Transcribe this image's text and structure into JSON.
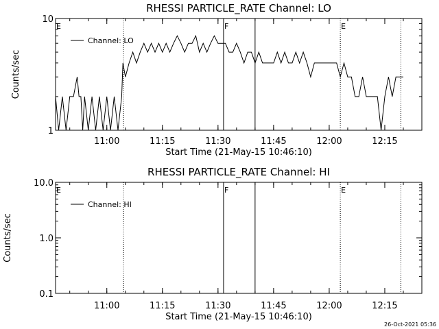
{
  "footer": {
    "timestamp": "26-Oct-2021 05:36"
  },
  "chart_data": [
    {
      "type": "line",
      "title": "RHESSI PARTICLE_RATE Channel: LO",
      "xlabel": "Start Time (21-May-15 10:46:10)",
      "ylabel": "Counts/sec",
      "yscale": "log",
      "xlim": [
        "10:46:10",
        "12:25:00"
      ],
      "ylim": [
        1,
        10
      ],
      "xticks": [
        "11:00",
        "11:15",
        "11:30",
        "11:45",
        "12:00",
        "12:15"
      ],
      "yticks": [
        "1",
        "10"
      ],
      "legend": {
        "label": "Channel: LO",
        "position": "top-left"
      },
      "markers": [
        {
          "time": "10:46:10",
          "label": "E",
          "style": "dotted"
        },
        {
          "time": "11:04:30",
          "label": "",
          "style": "dotted"
        },
        {
          "time": "11:31:30",
          "label": "F",
          "style": "solid"
        },
        {
          "time": "11:40:00",
          "label": "",
          "style": "solid"
        },
        {
          "time": "12:03:00",
          "label": "E",
          "style": "dotted"
        },
        {
          "time": "12:19:20",
          "label": "",
          "style": "dotted"
        }
      ],
      "series": [
        {
          "name": "Channel: LO",
          "x": [
            "10:46:10",
            "10:47:00",
            "10:48:00",
            "10:49:00",
            "10:50:00",
            "10:51:00",
            "10:52:00",
            "10:52:30",
            "10:53:00",
            "10:53:30",
            "10:54:00",
            "10:55:00",
            "10:56:00",
            "10:57:00",
            "10:58:00",
            "10:59:00",
            "11:00:00",
            "11:01:00",
            "11:02:00",
            "11:03:00",
            "11:04:00",
            "11:04:20",
            "11:05:00",
            "11:06:00",
            "11:07:00",
            "11:08:00",
            "11:09:00",
            "11:10:00",
            "11:11:00",
            "11:12:00",
            "11:13:00",
            "11:14:00",
            "11:15:00",
            "11:16:00",
            "11:17:00",
            "11:18:00",
            "11:19:00",
            "11:20:00",
            "11:21:00",
            "11:22:00",
            "11:23:00",
            "11:24:00",
            "11:25:00",
            "11:26:00",
            "11:27:00",
            "11:28:00",
            "11:29:00",
            "11:30:00",
            "11:31:00",
            "11:32:00",
            "11:33:00",
            "11:34:00",
            "11:35:00",
            "11:36:00",
            "11:37:00",
            "11:38:00",
            "11:39:00",
            "11:40:00",
            "11:41:00",
            "11:42:00",
            "11:43:00",
            "11:44:00",
            "11:45:00",
            "11:46:00",
            "11:47:00",
            "11:48:00",
            "11:49:00",
            "11:50:00",
            "11:51:00",
            "11:52:00",
            "11:53:00",
            "11:54:00",
            "11:55:00",
            "11:56:00",
            "11:57:00",
            "11:58:00",
            "11:59:00",
            "12:00:00",
            "12:01:00",
            "12:02:00",
            "12:03:00",
            "12:04:00",
            "12:05:00",
            "12:06:00",
            "12:07:00",
            "12:08:00",
            "12:09:00",
            "12:10:00",
            "12:11:00",
            "12:12:00",
            "12:13:00",
            "12:14:00",
            "12:15:00",
            "12:16:00",
            "12:17:00",
            "12:18:00",
            "12:19:00",
            "12:20:00"
          ],
          "values": [
            2,
            1,
            2,
            1,
            2,
            2,
            3,
            2,
            2,
            1,
            2,
            1,
            2,
            1,
            2,
            1,
            2,
            1,
            2,
            1,
            2,
            4,
            3,
            4,
            5,
            4,
            5,
            6,
            5,
            6,
            5,
            6,
            5,
            6,
            5,
            6,
            7,
            6,
            5,
            6,
            6,
            7,
            5,
            6,
            5,
            6,
            7,
            6,
            6,
            6,
            5,
            5,
            6,
            5,
            4,
            5,
            5,
            4,
            5,
            4,
            4,
            4,
            4,
            5,
            4,
            5,
            4,
            4,
            5,
            4,
            5,
            4,
            3,
            4,
            4,
            4,
            4,
            4,
            4,
            4,
            3,
            4,
            3,
            3,
            2,
            2,
            3,
            2,
            2,
            2,
            2,
            1,
            2,
            3,
            2,
            3,
            3,
            3
          ]
        }
      ]
    },
    {
      "type": "line",
      "title": "RHESSI PARTICLE_RATE Channel: HI",
      "xlabel": "Start Time (21-May-15 10:46:10)",
      "ylabel": "Counts/sec",
      "yscale": "log",
      "xlim": [
        "10:46:10",
        "12:25:00"
      ],
      "ylim": [
        0.1,
        10
      ],
      "xticks": [
        "11:00",
        "11:15",
        "11:30",
        "11:45",
        "12:00",
        "12:15"
      ],
      "yticks": [
        "0.1",
        "1.0",
        "10.0"
      ],
      "legend": {
        "label": "Channel: HI",
        "position": "top-left"
      },
      "markers": [
        {
          "time": "10:46:10",
          "label": "E",
          "style": "dotted"
        },
        {
          "time": "11:04:30",
          "label": "",
          "style": "dotted"
        },
        {
          "time": "11:31:30",
          "label": "F",
          "style": "solid"
        },
        {
          "time": "11:40:00",
          "label": "",
          "style": "solid"
        },
        {
          "time": "12:03:00",
          "label": "E",
          "style": "dotted"
        },
        {
          "time": "12:19:20",
          "label": "",
          "style": "dotted"
        }
      ],
      "series": [
        {
          "name": "Channel: HI",
          "x": [],
          "values": []
        }
      ]
    }
  ]
}
